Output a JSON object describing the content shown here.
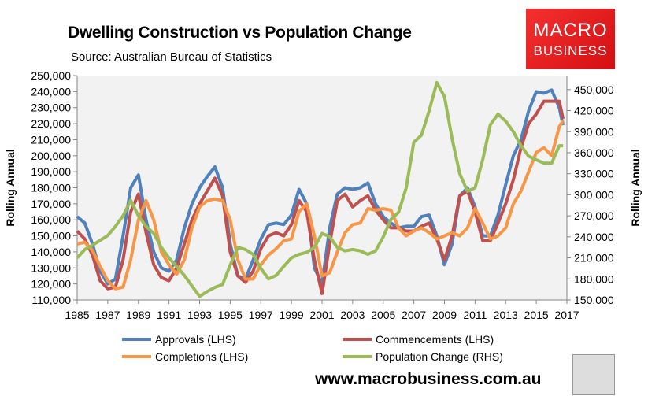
{
  "chart_data": {
    "type": "line",
    "title": "Dwelling Construction vs Population Change",
    "subtitle": "Source: Australian Bureau of Statistics",
    "ylabel_left": "Rolling Annual",
    "ylabel_right": "Rolling Annual",
    "xlim": [
      1985,
      2017
    ],
    "ylim_left": [
      110000,
      250000
    ],
    "ylim_right": [
      150000,
      470000
    ],
    "x_ticks": [
      "1985",
      "1987",
      "1989",
      "1991",
      "1993",
      "1995",
      "1997",
      "1999",
      "2001",
      "2003",
      "2005",
      "2007",
      "2009",
      "2011",
      "2013",
      "2015",
      "2017"
    ],
    "y_ticks_left": [
      "110,000",
      "120,000",
      "130,000",
      "140,000",
      "150,000",
      "160,000",
      "170,000",
      "180,000",
      "190,000",
      "200,000",
      "210,000",
      "220,000",
      "230,000",
      "240,000",
      "250,000"
    ],
    "y_ticks_right": [
      "150,000",
      "180,000",
      "210,000",
      "240,000",
      "270,000",
      "300,000",
      "330,000",
      "360,000",
      "390,000",
      "420,000",
      "450,000"
    ],
    "grid": false,
    "legend_position": "bottom",
    "x": [
      1985,
      1985.5,
      1986,
      1986.5,
      1987,
      1987.5,
      1988,
      1988.5,
      1989,
      1989.5,
      1990,
      1990.5,
      1991,
      1991.5,
      1992,
      1992.5,
      1993,
      1993.5,
      1994,
      1994.5,
      1995,
      1995.5,
      1996,
      1996.5,
      1997,
      1997.5,
      1998,
      1998.5,
      1999,
      1999.5,
      2000,
      2000.5,
      2001,
      2001.5,
      2002,
      2002.5,
      2003,
      2003.5,
      2004,
      2004.5,
      2005,
      2005.5,
      2006,
      2006.5,
      2007,
      2007.5,
      2008,
      2008.5,
      2009,
      2009.5,
      2010,
      2010.5,
      2011,
      2011.5,
      2012,
      2012.5,
      2013,
      2013.5,
      2014,
      2014.5,
      2015,
      2015.5,
      2016,
      2016.5,
      2016.75
    ],
    "series": [
      {
        "name": "Approvals (LHS)",
        "axis": "left",
        "color": "#4f81bd",
        "values": [
          162000,
          158000,
          145000,
          128000,
          120000,
          123000,
          150000,
          180000,
          188000,
          160000,
          140000,
          130000,
          128000,
          135000,
          155000,
          170000,
          180000,
          187000,
          193000,
          180000,
          145000,
          125000,
          123000,
          135000,
          148000,
          157000,
          158000,
          157000,
          163000,
          179000,
          170000,
          130000,
          120000,
          155000,
          176000,
          180000,
          179000,
          180000,
          183000,
          170000,
          162000,
          158000,
          155000,
          156000,
          156000,
          162000,
          163000,
          150000,
          132000,
          145000,
          175000,
          180000,
          168000,
          150000,
          150000,
          163000,
          182000,
          200000,
          210000,
          228000,
          240000,
          239000,
          241000,
          230000,
          219000
        ]
      },
      {
        "name": "Commencements (LHS)",
        "axis": "left",
        "color": "#c0504d",
        "values": [
          153000,
          148000,
          138000,
          122000,
          117000,
          118000,
          135000,
          165000,
          176000,
          152000,
          132000,
          124000,
          122000,
          130000,
          145000,
          160000,
          170000,
          178000,
          186000,
          175000,
          140000,
          125000,
          121000,
          128000,
          142000,
          150000,
          152000,
          150000,
          157000,
          172000,
          165000,
          135000,
          114000,
          145000,
          172000,
          176000,
          168000,
          172000,
          175000,
          166000,
          160000,
          155000,
          155000,
          153000,
          153000,
          156000,
          158000,
          148000,
          135000,
          150000,
          175000,
          178000,
          165000,
          147000,
          147000,
          158000,
          170000,
          185000,
          205000,
          220000,
          226000,
          234000,
          234000,
          234000,
          223000
        ]
      },
      {
        "name": "Completions (LHS)",
        "axis": "left",
        "color": "#f79646",
        "values": [
          145000,
          146000,
          141000,
          131000,
          122000,
          117000,
          118000,
          135000,
          160000,
          172000,
          160000,
          140000,
          132000,
          126000,
          135000,
          155000,
          168000,
          172000,
          173000,
          172000,
          160000,
          135000,
          123000,
          123000,
          132000,
          138000,
          142000,
          147000,
          148000,
          165000,
          170000,
          150000,
          125000,
          127000,
          140000,
          152000,
          157000,
          158000,
          167000,
          166000,
          167000,
          166000,
          155000,
          150000,
          153000,
          155000,
          152000,
          148000,
          150000,
          152000,
          150000,
          155000,
          167000,
          158000,
          148000,
          150000,
          155000,
          170000,
          178000,
          190000,
          202000,
          205000,
          200000,
          218000,
          222000
        ]
      },
      {
        "name": "Population Change (RHS)",
        "axis": "right",
        "color": "#9bbb59",
        "values": [
          210000,
          222000,
          228000,
          235000,
          242000,
          255000,
          270000,
          292000,
          270000,
          255000,
          245000,
          225000,
          210000,
          198000,
          185000,
          170000,
          155000,
          162000,
          168000,
          172000,
          200000,
          225000,
          222000,
          215000,
          195000,
          180000,
          185000,
          198000,
          210000,
          215000,
          218000,
          225000,
          245000,
          240000,
          225000,
          220000,
          222000,
          220000,
          215000,
          220000,
          240000,
          265000,
          275000,
          310000,
          375000,
          385000,
          420000,
          460000,
          440000,
          380000,
          330000,
          305000,
          310000,
          350000,
          400000,
          415000,
          405000,
          390000,
          370000,
          355000,
          350000,
          345000,
          345000,
          370000,
          370000
        ]
      }
    ]
  },
  "branding": {
    "logo_line1": "MACRO",
    "logo_line2": "BUSINESS",
    "url": "www.macrobusiness.com.au"
  }
}
